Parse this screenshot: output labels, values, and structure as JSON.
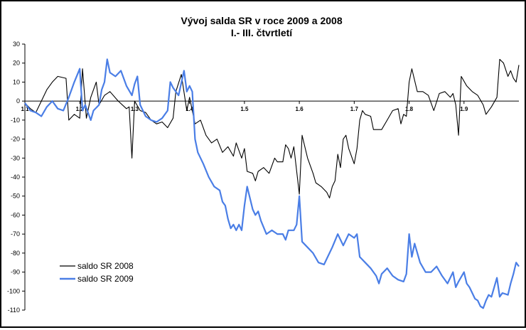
{
  "chart_data": {
    "type": "line",
    "title": "Vývoj salda SR v roce 2009 a 2008",
    "subtitle": "I.- III. čtvrtletí",
    "xlabel": "",
    "ylabel": "",
    "ylim": [
      -110,
      30
    ],
    "yticks": [
      30,
      20,
      10,
      0,
      -10,
      -20,
      -30,
      -40,
      -50,
      -60,
      -70,
      -80,
      -90,
      -100,
      -110
    ],
    "xlim": [
      1.0,
      10.0
    ],
    "xticks": [
      {
        "label": "1.1",
        "x": 1.0
      },
      {
        "label": "1.2",
        "x": 2.0
      },
      {
        "label": "1.3",
        "x": 3.0
      },
      {
        "label": "1.4",
        "x": 4.0
      },
      {
        "label": "1.5",
        "x": 5.0
      },
      {
        "label": "1.6",
        "x": 6.0
      },
      {
        "label": "1.7",
        "x": 7.0
      },
      {
        "label": "1.8",
        "x": 8.0
      },
      {
        "label": "1.9",
        "x": 9.0
      }
    ],
    "grid": false,
    "legend_position": "bottom-left",
    "series": [
      {
        "name": "saldo SR 2008",
        "color": "#000000",
        "points": [
          [
            1.0,
            -1
          ],
          [
            1.1,
            -4
          ],
          [
            1.2,
            -6
          ],
          [
            1.3,
            0
          ],
          [
            1.4,
            6
          ],
          [
            1.5,
            10
          ],
          [
            1.6,
            13
          ],
          [
            1.75,
            12
          ],
          [
            1.8,
            -10
          ],
          [
            1.9,
            -7
          ],
          [
            2.0,
            -9
          ],
          [
            2.05,
            17
          ],
          [
            2.12,
            -9
          ],
          [
            2.2,
            2
          ],
          [
            2.3,
            10
          ],
          [
            2.35,
            -2
          ],
          [
            2.45,
            3
          ],
          [
            2.55,
            5
          ],
          [
            2.7,
            0
          ],
          [
            2.85,
            -4
          ],
          [
            2.9,
            -3
          ],
          [
            2.95,
            -30
          ],
          [
            3.0,
            0
          ],
          [
            3.1,
            -5
          ],
          [
            3.2,
            -6
          ],
          [
            3.3,
            -10
          ],
          [
            3.4,
            -12
          ],
          [
            3.5,
            -11
          ],
          [
            3.6,
            -14
          ],
          [
            3.7,
            -9
          ],
          [
            3.75,
            5
          ],
          [
            3.85,
            14
          ],
          [
            3.95,
            -5
          ],
          [
            4.0,
            2
          ],
          [
            4.05,
            -5
          ],
          [
            4.1,
            -12
          ],
          [
            4.2,
            -10
          ],
          [
            4.3,
            -18
          ],
          [
            4.4,
            -22
          ],
          [
            4.5,
            -20
          ],
          [
            4.6,
            -27
          ],
          [
            4.7,
            -24
          ],
          [
            4.8,
            -29
          ],
          [
            4.85,
            -22
          ],
          [
            4.95,
            -30
          ],
          [
            5.0,
            -25
          ],
          [
            5.05,
            -37
          ],
          [
            5.15,
            -38
          ],
          [
            5.2,
            -42
          ],
          [
            5.25,
            -37
          ],
          [
            5.35,
            -35
          ],
          [
            5.45,
            -38
          ],
          [
            5.55,
            -30
          ],
          [
            5.6,
            -32
          ],
          [
            5.7,
            -32
          ],
          [
            5.75,
            -23
          ],
          [
            5.8,
            -25
          ],
          [
            5.85,
            -30
          ],
          [
            5.9,
            -24
          ],
          [
            6.0,
            -49
          ],
          [
            6.05,
            -18
          ],
          [
            6.15,
            -30
          ],
          [
            6.25,
            -38
          ],
          [
            6.3,
            -43
          ],
          [
            6.4,
            -45
          ],
          [
            6.5,
            -48
          ],
          [
            6.55,
            -51
          ],
          [
            6.6,
            -45
          ],
          [
            6.65,
            -42
          ],
          [
            6.7,
            -28
          ],
          [
            6.75,
            -35
          ],
          [
            6.8,
            -20
          ],
          [
            6.85,
            -18
          ],
          [
            6.9,
            -25
          ],
          [
            7.0,
            -33
          ],
          [
            7.05,
            -25
          ],
          [
            7.1,
            -10
          ],
          [
            7.15,
            -5
          ],
          [
            7.2,
            -7
          ],
          [
            7.3,
            -8
          ],
          [
            7.35,
            -15
          ],
          [
            7.5,
            -15
          ],
          [
            7.6,
            -10
          ],
          [
            7.7,
            -5
          ],
          [
            7.8,
            -4
          ],
          [
            7.85,
            -12
          ],
          [
            7.9,
            -7
          ],
          [
            7.95,
            -8
          ],
          [
            8.0,
            10
          ],
          [
            8.05,
            17
          ],
          [
            8.15,
            5
          ],
          [
            8.25,
            5
          ],
          [
            8.35,
            3
          ],
          [
            8.45,
            -5
          ],
          [
            8.55,
            4
          ],
          [
            8.65,
            5
          ],
          [
            8.75,
            2
          ],
          [
            8.8,
            4
          ],
          [
            8.85,
            -2
          ],
          [
            8.9,
            -18
          ],
          [
            8.95,
            13
          ],
          [
            9.05,
            8
          ],
          [
            9.15,
            5
          ],
          [
            9.25,
            3
          ],
          [
            9.35,
            -2
          ],
          [
            9.4,
            -7
          ],
          [
            9.5,
            -3
          ],
          [
            9.6,
            2
          ],
          [
            9.65,
            22
          ],
          [
            9.72,
            20
          ],
          [
            9.8,
            13
          ],
          [
            9.85,
            16
          ],
          [
            9.9,
            12
          ],
          [
            9.95,
            10
          ],
          [
            10.0,
            19
          ]
        ]
      },
      {
        "name": "saldo SR 2009",
        "color": "#4a7ee6",
        "points": [
          [
            1.0,
            -1
          ],
          [
            1.1,
            -5
          ],
          [
            1.2,
            -6
          ],
          [
            1.3,
            -8
          ],
          [
            1.4,
            -3
          ],
          [
            1.5,
            0
          ],
          [
            1.6,
            -4
          ],
          [
            1.7,
            -5
          ],
          [
            1.8,
            2
          ],
          [
            1.9,
            10
          ],
          [
            2.0,
            17
          ],
          [
            2.05,
            -5
          ],
          [
            2.1,
            -2
          ],
          [
            2.2,
            -10
          ],
          [
            2.25,
            -5
          ],
          [
            2.35,
            -2
          ],
          [
            2.4,
            6
          ],
          [
            2.45,
            10
          ],
          [
            2.5,
            22
          ],
          [
            2.55,
            15
          ],
          [
            2.65,
            13
          ],
          [
            2.75,
            16
          ],
          [
            2.85,
            8
          ],
          [
            2.95,
            3
          ],
          [
            3.0,
            9
          ],
          [
            3.05,
            13
          ],
          [
            3.1,
            -2
          ],
          [
            3.2,
            -8
          ],
          [
            3.3,
            -10
          ],
          [
            3.4,
            -11
          ],
          [
            3.5,
            -9
          ],
          [
            3.6,
            -5
          ],
          [
            3.65,
            10
          ],
          [
            3.7,
            7
          ],
          [
            3.8,
            3
          ],
          [
            3.9,
            16
          ],
          [
            3.95,
            5
          ],
          [
            4.0,
            8
          ],
          [
            4.05,
            5
          ],
          [
            4.1,
            -20
          ],
          [
            4.15,
            -27
          ],
          [
            4.25,
            -33
          ],
          [
            4.35,
            -40
          ],
          [
            4.45,
            -45
          ],
          [
            4.55,
            -47
          ],
          [
            4.6,
            -53
          ],
          [
            4.65,
            -55
          ],
          [
            4.7,
            -62
          ],
          [
            4.75,
            -67
          ],
          [
            4.8,
            -65
          ],
          [
            4.85,
            -68
          ],
          [
            4.9,
            -65
          ],
          [
            4.95,
            -68
          ],
          [
            5.0,
            -55
          ],
          [
            5.05,
            -45
          ],
          [
            5.15,
            -57
          ],
          [
            5.2,
            -60
          ],
          [
            5.25,
            -58
          ],
          [
            5.3,
            -63
          ],
          [
            5.4,
            -70
          ],
          [
            5.5,
            -68
          ],
          [
            5.6,
            -70
          ],
          [
            5.7,
            -70
          ],
          [
            5.75,
            -73
          ],
          [
            5.8,
            -68
          ],
          [
            5.9,
            -68
          ],
          [
            5.95,
            -65
          ],
          [
            6.0,
            -50
          ],
          [
            6.05,
            -74
          ],
          [
            6.15,
            -77
          ],
          [
            6.25,
            -80
          ],
          [
            6.35,
            -85
          ],
          [
            6.45,
            -86
          ],
          [
            6.5,
            -83
          ],
          [
            6.6,
            -77
          ],
          [
            6.7,
            -70
          ],
          [
            6.8,
            -76
          ],
          [
            6.9,
            -70
          ],
          [
            7.0,
            -72
          ],
          [
            7.05,
            -70
          ],
          [
            7.1,
            -82
          ],
          [
            7.2,
            -85
          ],
          [
            7.3,
            -88
          ],
          [
            7.4,
            -92
          ],
          [
            7.45,
            -96
          ],
          [
            7.5,
            -91
          ],
          [
            7.6,
            -88
          ],
          [
            7.7,
            -92
          ],
          [
            7.8,
            -94
          ],
          [
            7.9,
            -95
          ],
          [
            7.95,
            -91
          ],
          [
            8.0,
            -70
          ],
          [
            8.05,
            -82
          ],
          [
            8.1,
            -75
          ],
          [
            8.2,
            -85
          ],
          [
            8.3,
            -90
          ],
          [
            8.4,
            -90
          ],
          [
            8.5,
            -87
          ],
          [
            8.6,
            -92
          ],
          [
            8.7,
            -96
          ],
          [
            8.8,
            -90
          ],
          [
            8.85,
            -98
          ],
          [
            8.9,
            -95
          ],
          [
            9.0,
            -90
          ],
          [
            9.05,
            -96
          ],
          [
            9.1,
            -98
          ],
          [
            9.15,
            -101
          ],
          [
            9.2,
            -104
          ],
          [
            9.25,
            -105
          ],
          [
            9.3,
            -108
          ],
          [
            9.35,
            -109
          ],
          [
            9.4,
            -105
          ],
          [
            9.45,
            -102
          ],
          [
            9.5,
            -103
          ],
          [
            9.6,
            -93
          ],
          [
            9.65,
            -103
          ],
          [
            9.7,
            -101
          ],
          [
            9.8,
            -102
          ],
          [
            9.85,
            -96
          ],
          [
            9.9,
            -91
          ],
          [
            9.95,
            -85
          ],
          [
            10.0,
            -87
          ]
        ]
      }
    ]
  }
}
